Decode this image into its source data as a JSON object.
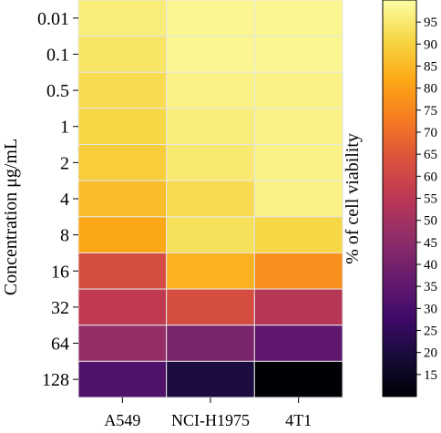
{
  "chart_data": {
    "type": "heatmap",
    "title": "",
    "xlabel": "",
    "ylabel": "Concentration μg/mL",
    "columns": [
      "A549",
      "NCI-H1975",
      "4T1"
    ],
    "rows": [
      "0.01",
      "0.1",
      "0.5",
      "1",
      "2",
      "4",
      "8",
      "16",
      "32",
      "64",
      "128"
    ],
    "values": [
      [
        96,
        98,
        98
      ],
      [
        94,
        98,
        98
      ],
      [
        92,
        97,
        97
      ],
      [
        91,
        96,
        97
      ],
      [
        89,
        95,
        97
      ],
      [
        86,
        92,
        97
      ],
      [
        82,
        93,
        91
      ],
      [
        62,
        84,
        77
      ],
      [
        56,
        62,
        54
      ],
      [
        47,
        41,
        35
      ],
      [
        32,
        20,
        10
      ]
    ],
    "colorbar": {
      "label": "% of cell viability",
      "min": 10,
      "max": 100,
      "ticks": [
        15,
        20,
        25,
        30,
        35,
        40,
        45,
        50,
        55,
        60,
        65,
        70,
        75,
        80,
        85,
        90,
        95
      ],
      "colormap": "inferno"
    },
    "grid": true,
    "colors": {
      "cell_border": "#e6e6e6"
    }
  }
}
